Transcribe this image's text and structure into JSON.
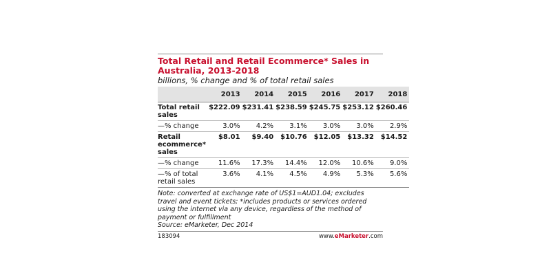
{
  "chart_data": {
    "type": "table",
    "title": "Total Retail and Retail Ecommerce* Sales in Australia, 2013-2018",
    "subtitle": "billions, % change and % of total retail sales",
    "columns": [
      "",
      "2013",
      "2014",
      "2015",
      "2016",
      "2017",
      "2018"
    ],
    "rows": [
      {
        "label": "Total retail sales",
        "bold": true,
        "values": [
          "$222.09",
          "$231.41",
          "$238.59",
          "$245.75",
          "$253.12",
          "$260.46"
        ]
      },
      {
        "label": "—% change",
        "bold": false,
        "values": [
          "3.0%",
          "4.2%",
          "3.1%",
          "3.0%",
          "3.0%",
          "2.9%"
        ]
      },
      {
        "label": "Retail ecommerce* sales",
        "bold": true,
        "values": [
          "$8.01",
          "$9.40",
          "$10.76",
          "$12.05",
          "$13.32",
          "$14.52"
        ]
      },
      {
        "label": "—% change",
        "bold": false,
        "values": [
          "11.6%",
          "17.3%",
          "14.4%",
          "12.0%",
          "10.6%",
          "9.0%"
        ]
      },
      {
        "label": "—% of total retail sales",
        "bold": false,
        "values": [
          "3.6%",
          "4.1%",
          "4.5%",
          "4.9%",
          "5.3%",
          "5.6%"
        ]
      }
    ],
    "note": "Note: converted at exchange rate of US$1=AUD1.04; excludes travel and event tickets; *includes products or services ordered using the internet via any device, regardless of the method of payment or fulfillment",
    "source": "Source: eMarketer, Dec 2014",
    "chart_id": "183094",
    "brand_prefix": "www.",
    "brand_name": "eMarketer",
    "brand_suffix": ".com",
    "colors": {
      "title": "#c8102e",
      "header_bg": "#e3e3e3"
    }
  }
}
